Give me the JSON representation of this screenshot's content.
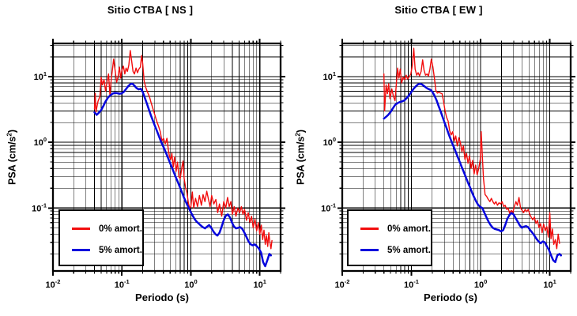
{
  "page": {
    "background": "#ffffff"
  },
  "figures": [
    {
      "id": "ns",
      "title": "Sitio CTBA [ NS ]",
      "xlabel": "Periodo (s)",
      "ylabel_pre": "PSA (cm/s",
      "ylabel_sup": "2",
      "ylabel_post": ")",
      "legend": {
        "entries": [
          {
            "label": "0% amort.",
            "color": "#f20d0d"
          },
          {
            "label": "5% amort.",
            "color": "#0606dd"
          }
        ]
      }
    },
    {
      "id": "ew",
      "title": "Sitio CTBA [ EW ]",
      "xlabel": "Periodo (s)",
      "ylabel_pre": "PSA (cm/s",
      "ylabel_sup": "2",
      "ylabel_post": ")",
      "legend": {
        "entries": [
          {
            "label": "0% amort.",
            "color": "#f20d0d"
          },
          {
            "label": "5% amort.",
            "color": "#0606dd"
          }
        ]
      }
    }
  ],
  "chart_data": [
    {
      "type": "line",
      "title": "Sitio CTBA [ NS ]",
      "xlabel": "Periodo (s)",
      "ylabel": "PSA (cm/s2)",
      "xscale": "log",
      "yscale": "log",
      "xlim": [
        0.01,
        20
      ],
      "ylim": [
        0.011,
        32
      ],
      "xticks_labeled": [
        0.01,
        0.1,
        1,
        10
      ],
      "yticks_labeled": [
        0.1,
        1,
        10
      ],
      "grid": true,
      "legend_position": "lower left",
      "series": [
        {
          "name": "0% amort.",
          "color": "#f20d0d",
          "width": 1.4,
          "x": [
            0.04,
            0.041,
            0.042,
            0.045,
            0.048,
            0.05,
            0.052,
            0.055,
            0.058,
            0.061,
            0.064,
            0.067,
            0.07,
            0.073,
            0.076,
            0.08,
            0.084,
            0.088,
            0.092,
            0.096,
            0.1,
            0.105,
            0.11,
            0.115,
            0.12,
            0.126,
            0.132,
            0.138,
            0.145,
            0.152,
            0.16,
            0.168,
            0.176,
            0.185,
            0.193,
            0.2,
            0.21,
            0.222,
            0.235,
            0.25,
            0.265,
            0.28,
            0.3,
            0.32,
            0.34,
            0.36,
            0.38,
            0.4,
            0.425,
            0.45,
            0.47,
            0.49,
            0.51,
            0.53,
            0.555,
            0.58,
            0.61,
            0.64,
            0.67,
            0.7,
            0.74,
            0.77,
            0.8,
            0.84,
            0.88,
            0.92,
            0.96,
            1.0,
            1.05,
            1.1,
            1.17,
            1.25,
            1.33,
            1.42,
            1.5,
            1.6,
            1.7,
            1.8,
            1.9,
            2.0,
            2.15,
            2.3,
            2.45,
            2.6,
            2.8,
            3.0,
            3.2,
            3.4,
            3.6,
            3.8,
            4.0,
            4.25,
            4.5,
            4.8,
            5.1,
            5.4,
            5.7,
            6.0,
            6.4,
            6.8,
            7.2,
            7.6,
            8.0,
            8.5,
            9.0,
            9.5,
            10.0,
            10.5,
            11.0,
            11.5,
            12.0,
            12.5,
            13.0,
            13.5,
            14.0,
            14.5,
            15.0
          ],
          "y": [
            3.2,
            5.6,
            2.9,
            4.2,
            5.0,
            9.8,
            7.5,
            9.0,
            6.0,
            8.5,
            11.0,
            5.2,
            9.0,
            13.0,
            18.5,
            12.0,
            8.2,
            10.0,
            14.0,
            9.5,
            12.5,
            14.5,
            11.0,
            13.5,
            12.0,
            15.0,
            25.0,
            18.0,
            12.0,
            11.0,
            13.5,
            11.5,
            13.0,
            14.0,
            21.0,
            16.0,
            8.5,
            6.8,
            5.8,
            5.0,
            4.0,
            3.3,
            2.6,
            2.1,
            1.75,
            1.45,
            1.05,
            1.15,
            0.95,
            1.15,
            0.78,
            0.6,
            0.55,
            0.68,
            0.42,
            0.6,
            0.36,
            0.5,
            0.3,
            0.28,
            0.42,
            0.52,
            0.28,
            0.2,
            0.17,
            0.12,
            0.1,
            0.105,
            0.175,
            0.1,
            0.14,
            0.105,
            0.155,
            0.11,
            0.16,
            0.125,
            0.18,
            0.135,
            0.105,
            0.155,
            0.115,
            0.135,
            0.085,
            0.115,
            0.075,
            0.125,
            0.1,
            0.145,
            0.105,
            0.125,
            0.08,
            0.105,
            0.075,
            0.1,
            0.085,
            0.105,
            0.08,
            0.095,
            0.065,
            0.085,
            0.06,
            0.075,
            0.05,
            0.068,
            0.045,
            0.06,
            0.04,
            0.055,
            0.033,
            0.046,
            0.028,
            0.038,
            0.026,
            0.042,
            0.03,
            0.024,
            0.032
          ]
        },
        {
          "name": "5% amort.",
          "color": "#0606dd",
          "width": 2.5,
          "x": [
            0.04,
            0.043,
            0.046,
            0.05,
            0.054,
            0.058,
            0.063,
            0.068,
            0.073,
            0.079,
            0.085,
            0.092,
            0.099,
            0.107,
            0.115,
            0.124,
            0.133,
            0.142,
            0.152,
            0.163,
            0.175,
            0.188,
            0.2,
            0.214,
            0.23,
            0.246,
            0.264,
            0.283,
            0.303,
            0.325,
            0.348,
            0.373,
            0.4,
            0.429,
            0.46,
            0.493,
            0.528,
            0.566,
            0.607,
            0.65,
            0.697,
            0.747,
            0.8,
            0.858,
            0.92,
            0.986,
            1.057,
            1.133,
            1.214,
            1.301,
            1.394,
            1.494,
            1.602,
            1.717,
            1.84,
            1.972,
            2.114,
            2.266,
            2.429,
            2.603,
            2.79,
            2.99,
            3.205,
            3.435,
            3.682,
            3.946,
            4.229,
            4.533,
            4.858,
            5.207,
            5.581,
            5.982,
            6.411,
            6.871,
            7.365,
            7.894,
            8.461,
            9.068,
            9.719,
            10.42,
            11.17,
            11.97,
            12.83,
            13.75,
            14.5
          ],
          "y": [
            2.85,
            2.62,
            2.8,
            3.1,
            3.6,
            4.2,
            4.8,
            5.2,
            5.5,
            5.65,
            5.6,
            5.5,
            5.55,
            5.9,
            6.5,
            7.2,
            7.7,
            7.8,
            7.3,
            6.7,
            6.4,
            6.55,
            5.9,
            4.8,
            3.9,
            3.15,
            2.55,
            2.1,
            1.75,
            1.45,
            1.2,
            1.0,
            0.85,
            0.72,
            0.6,
            0.5,
            0.42,
            0.35,
            0.29,
            0.245,
            0.205,
            0.17,
            0.142,
            0.12,
            0.103,
            0.088,
            0.077,
            0.068,
            0.062,
            0.058,
            0.054,
            0.051,
            0.049,
            0.052,
            0.055,
            0.05,
            0.044,
            0.04,
            0.038,
            0.042,
            0.052,
            0.065,
            0.076,
            0.08,
            0.072,
            0.06,
            0.052,
            0.049,
            0.05,
            0.051,
            0.048,
            0.042,
            0.036,
            0.031,
            0.028,
            0.027,
            0.028,
            0.026,
            0.024,
            0.021,
            0.015,
            0.013,
            0.016,
            0.02,
            0.019
          ]
        }
      ]
    },
    {
      "type": "line",
      "title": "Sitio CTBA [ EW ]",
      "xlabel": "Periodo (s)",
      "ylabel": "PSA (cm/s2)",
      "xscale": "log",
      "yscale": "log",
      "xlim": [
        0.01,
        20
      ],
      "ylim": [
        0.011,
        32
      ],
      "xticks_labeled": [
        0.01,
        0.1,
        1,
        10
      ],
      "yticks_labeled": [
        0.1,
        1,
        10
      ],
      "grid": true,
      "legend_position": "lower left",
      "series": [
        {
          "name": "0% amort.",
          "color": "#f20d0d",
          "width": 1.4,
          "x": [
            0.04,
            0.041,
            0.043,
            0.045,
            0.047,
            0.049,
            0.052,
            0.055,
            0.058,
            0.06,
            0.063,
            0.066,
            0.069,
            0.072,
            0.076,
            0.08,
            0.084,
            0.088,
            0.093,
            0.098,
            0.103,
            0.108,
            0.113,
            0.119,
            0.125,
            0.131,
            0.138,
            0.145,
            0.152,
            0.16,
            0.168,
            0.176,
            0.185,
            0.194,
            0.204,
            0.214,
            0.225,
            0.237,
            0.25,
            0.263,
            0.277,
            0.291,
            0.306,
            0.322,
            0.339,
            0.357,
            0.375,
            0.395,
            0.415,
            0.437,
            0.46,
            0.484,
            0.509,
            0.536,
            0.564,
            0.593,
            0.624,
            0.657,
            0.691,
            0.727,
            0.765,
            0.805,
            0.847,
            0.891,
            0.938,
            0.987,
            1.02,
            1.06,
            1.1,
            1.16,
            1.22,
            1.29,
            1.36,
            1.43,
            1.5,
            1.58,
            1.66,
            1.75,
            1.84,
            1.94,
            2.04,
            2.15,
            2.26,
            2.38,
            2.5,
            2.63,
            2.77,
            2.92,
            3.07,
            3.23,
            3.4,
            3.58,
            3.77,
            3.97,
            4.18,
            4.4,
            4.63,
            4.87,
            5.13,
            5.4,
            5.68,
            5.98,
            6.3,
            6.63,
            6.98,
            7.34,
            7.73,
            8.14,
            8.57,
            9.02,
            9.49,
            9.99,
            10.4,
            10.9,
            11.4,
            12.0,
            12.6,
            13.2,
            13.8
          ],
          "y": [
            11.0,
            3.0,
            7.5,
            5.5,
            7.8,
            4.6,
            6.5,
            5.0,
            4.3,
            6.8,
            13.5,
            9.5,
            13.0,
            8.0,
            9.8,
            9.0,
            10.5,
            9.2,
            10.0,
            11.0,
            15.0,
            27.0,
            13.0,
            10.5,
            11.5,
            10.3,
            12.0,
            18.0,
            12.5,
            10.5,
            11.0,
            10.2,
            13.0,
            18.5,
            14.0,
            9.7,
            6.2,
            5.6,
            5.8,
            5.6,
            5.5,
            4.2,
            3.0,
            2.4,
            2.1,
            1.5,
            1.3,
            1.45,
            1.05,
            1.25,
            0.88,
            1.18,
            1.0,
            0.72,
            0.88,
            0.55,
            0.68,
            0.48,
            0.62,
            0.4,
            0.53,
            0.33,
            0.45,
            0.32,
            0.4,
            0.55,
            1.45,
            0.6,
            0.28,
            0.16,
            0.15,
            0.135,
            0.125,
            0.14,
            0.125,
            0.115,
            0.125,
            0.11,
            0.12,
            0.115,
            0.125,
            0.105,
            0.11,
            0.095,
            0.1,
            0.082,
            0.092,
            0.085,
            0.105,
            0.125,
            0.11,
            0.145,
            0.1,
            0.092,
            0.085,
            0.095,
            0.088,
            0.095,
            0.08,
            0.072,
            0.066,
            0.073,
            0.058,
            0.065,
            0.05,
            0.058,
            0.042,
            0.057,
            0.045,
            0.052,
            0.036,
            0.085,
            0.034,
            0.048,
            0.028,
            0.033,
            0.024,
            0.04,
            0.029
          ]
        },
        {
          "name": "5% amort.",
          "color": "#0606dd",
          "width": 2.5,
          "x": [
            0.04,
            0.043,
            0.046,
            0.05,
            0.054,
            0.058,
            0.063,
            0.068,
            0.073,
            0.079,
            0.085,
            0.092,
            0.099,
            0.107,
            0.115,
            0.124,
            0.133,
            0.142,
            0.152,
            0.163,
            0.175,
            0.188,
            0.2,
            0.214,
            0.23,
            0.246,
            0.264,
            0.283,
            0.303,
            0.325,
            0.348,
            0.373,
            0.4,
            0.429,
            0.46,
            0.493,
            0.528,
            0.566,
            0.607,
            0.65,
            0.697,
            0.747,
            0.8,
            0.858,
            0.92,
            0.986,
            1.057,
            1.133,
            1.214,
            1.301,
            1.394,
            1.494,
            1.602,
            1.717,
            1.84,
            1.972,
            2.114,
            2.266,
            2.429,
            2.603,
            2.79,
            2.99,
            3.205,
            3.435,
            3.682,
            3.946,
            4.229,
            4.533,
            4.858,
            5.207,
            5.581,
            5.982,
            6.411,
            6.871,
            7.365,
            7.894,
            8.461,
            9.068,
            9.719,
            10.42,
            11.17,
            11.97,
            12.83,
            13.75,
            14.5
          ],
          "y": [
            2.3,
            2.45,
            2.6,
            2.9,
            3.3,
            3.7,
            3.95,
            4.1,
            4.2,
            4.35,
            4.7,
            5.2,
            5.8,
            6.5,
            7.1,
            7.6,
            7.8,
            7.6,
            7.2,
            6.8,
            6.5,
            6.3,
            5.9,
            5.2,
            4.4,
            3.6,
            2.95,
            2.4,
            1.95,
            1.6,
            1.3,
            1.08,
            0.9,
            0.75,
            0.62,
            0.52,
            0.43,
            0.36,
            0.3,
            0.25,
            0.21,
            0.175,
            0.148,
            0.127,
            0.112,
            0.104,
            0.1,
            0.085,
            0.072,
            0.062,
            0.055,
            0.05,
            0.048,
            0.047,
            0.046,
            0.044,
            0.046,
            0.055,
            0.068,
            0.078,
            0.084,
            0.08,
            0.07,
            0.062,
            0.054,
            0.05,
            0.052,
            0.053,
            0.051,
            0.046,
            0.042,
            0.038,
            0.034,
            0.031,
            0.029,
            0.031,
            0.03,
            0.026,
            0.023,
            0.019,
            0.016,
            0.015,
            0.019,
            0.02,
            0.019
          ]
        }
      ]
    }
  ]
}
